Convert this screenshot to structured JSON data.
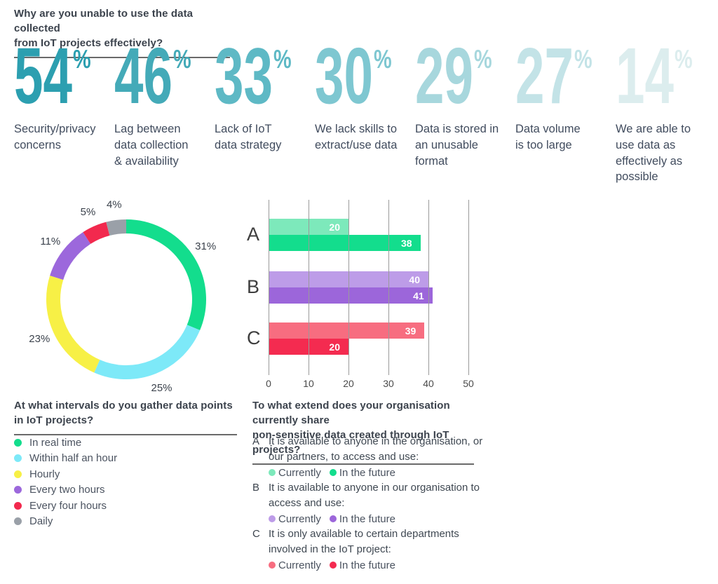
{
  "header": {
    "title_lines": [
      "Why are you unable to use the data collected",
      "from IoT projects effectively?"
    ]
  },
  "stats": [
    {
      "value": "54",
      "suffix": "%",
      "color": "#2C9FB0",
      "label_lines": [
        "Security/privacy",
        "concerns"
      ]
    },
    {
      "value": "46",
      "suffix": "%",
      "color": "#44AAB8",
      "label_lines": [
        "Lag between",
        "data collection",
        "& availability"
      ]
    },
    {
      "value": "33",
      "suffix": "%",
      "color": "#5EB9C5",
      "label_lines": [
        "Lack of IoT",
        "data strategy"
      ]
    },
    {
      "value": "30",
      "suffix": "%",
      "color": "#7EC7D1",
      "label_lines": [
        "We lack skills to",
        "extract/use data"
      ]
    },
    {
      "value": "29",
      "suffix": "%",
      "color": "#A7D7DD",
      "label_lines": [
        "Data is stored in",
        "an unusable",
        "format"
      ]
    },
    {
      "value": "27",
      "suffix": "%",
      "color": "#C3E3E7",
      "label_lines": [
        "Data volume",
        "is too large"
      ]
    },
    {
      "value": "14",
      "suffix": "%",
      "color": "#DCEDEE",
      "label_lines": [
        "We are able to",
        "use data as",
        "effectively as",
        "possible"
      ]
    }
  ],
  "chart_data": [
    {
      "type": "pie",
      "subtype": "donut",
      "question_lines": [
        "At what intervals do you gather data points",
        "in IoT projects?"
      ],
      "value_suffix": "%",
      "legend_position": "below",
      "segments": [
        {
          "label": "In real time",
          "value": 31,
          "color": "#13DD8D"
        },
        {
          "label": "Within half an hour",
          "value": 25,
          "color": "#7DE9F8"
        },
        {
          "label": "Hourly",
          "value": 23,
          "color": "#F7F046"
        },
        {
          "label": "Every two hours",
          "value": 11,
          "color": "#9C68DC"
        },
        {
          "label": "Every four hours",
          "value": 5,
          "color": "#F2294E"
        },
        {
          "label": "Daily",
          "value": 4,
          "color": "#9AA0A8"
        }
      ]
    },
    {
      "type": "bar",
      "orientation": "horizontal",
      "question_lines": [
        "To what extend does your organisation currently share",
        "non-sensitive data created through IoT projects?"
      ],
      "xlim": [
        0,
        50
      ],
      "ticks": [
        0,
        10,
        20,
        30,
        40,
        50
      ],
      "grid": true,
      "groups": [
        {
          "label": "A",
          "desc_lines": [
            "It is available to anyone in the organisation, or",
            "our partners, to access and use:"
          ],
          "series": [
            {
              "name": "Currently",
              "value": 20,
              "color": "#7DE9BB"
            },
            {
              "name": "In the future",
              "value": 38,
              "color": "#13DD8D"
            }
          ]
        },
        {
          "label": "B",
          "desc_lines": [
            "It is available to anyone in our organisation to",
            "access and use:"
          ],
          "series": [
            {
              "name": "Currently",
              "value": 40,
              "color": "#BD9CE8"
            },
            {
              "name": "In the future",
              "value": 41,
              "color": "#9C66DA"
            }
          ]
        },
        {
          "label": "C",
          "desc_lines": [
            "It is only available to certain departments",
            "involved in the IoT project:"
          ],
          "series": [
            {
              "name": "Currently",
              "value": 39,
              "color": "#F76D80"
            },
            {
              "name": "In the future",
              "value": 20,
              "color": "#F42B50"
            }
          ]
        }
      ]
    }
  ]
}
